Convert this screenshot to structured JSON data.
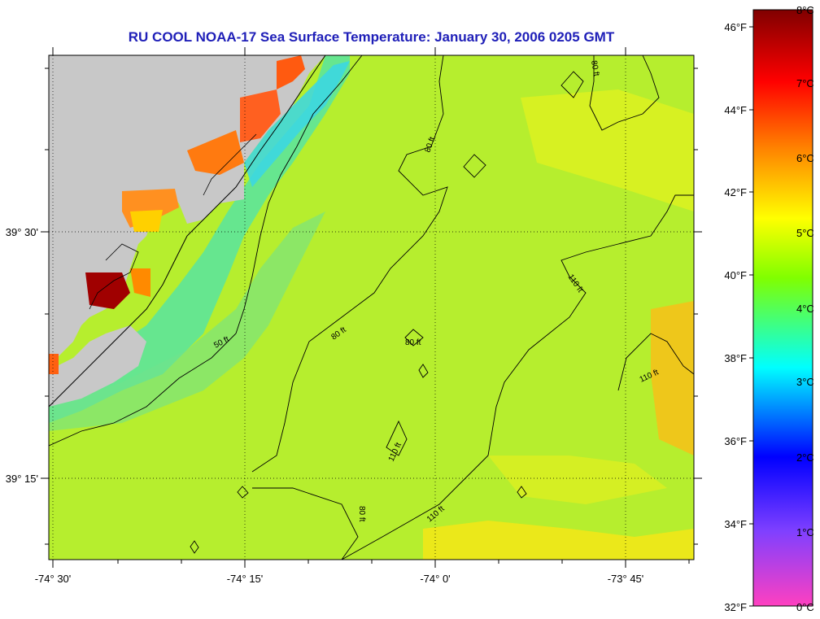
{
  "title": "RU COOL  NOAA-17  Sea Surface Temperature:  January 30, 2006 0205 GMT",
  "map": {
    "lon_labels": [
      "-74° 30'",
      "-74° 15'",
      "-74° 0'",
      "-73° 45'"
    ],
    "lat_labels": [
      "39° 30'",
      "39° 15'"
    ],
    "contour_labels": [
      "50 ft",
      "80 ft",
      "80 ft",
      "80 ft",
      "80 ft",
      "80 ft",
      "110 ft",
      "110 ft",
      "110 ft",
      "110 ft"
    ],
    "colors": {
      "land": "#c8c8c8",
      "sea_base": "#b5ee2e",
      "contour": "#000000"
    }
  },
  "colorbar": {
    "fahrenheit_labels": [
      "46°F",
      "44°F",
      "42°F",
      "40°F",
      "38°F",
      "36°F",
      "34°F",
      "32°F"
    ],
    "celsius_labels": [
      "8°C",
      "7°C",
      "6°C",
      "5°C",
      "4°C",
      "3°C",
      "2°C",
      "1°C",
      "0°C"
    ],
    "colors": [
      "#ff40c0",
      "#8040ff",
      "#0000ff",
      "#00ffff",
      "#80ff00",
      "#ffff00",
      "#ff8000",
      "#ff0000",
      "#800000"
    ]
  }
}
